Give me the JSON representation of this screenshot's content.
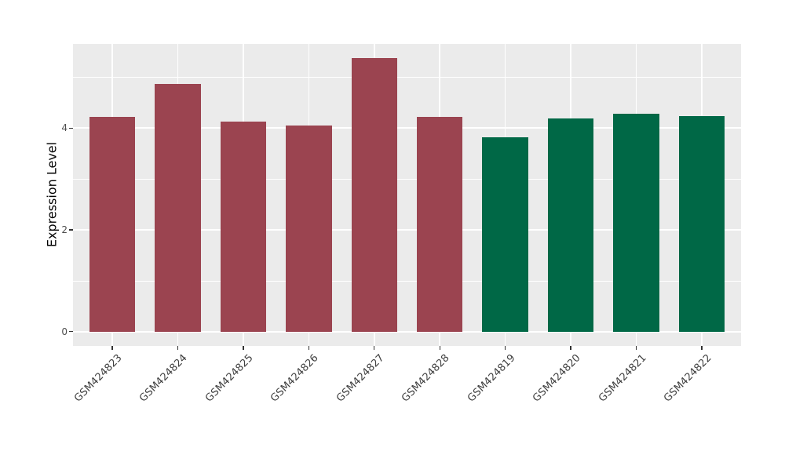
{
  "chart_data": {
    "type": "bar",
    "title": "",
    "xlabel": "",
    "ylabel": "Expression Level",
    "categories": [
      "GSM424823",
      "GSM424824",
      "GSM424825",
      "GSM424826",
      "GSM424827",
      "GSM424828",
      "GSM424819",
      "GSM424820",
      "GSM424821",
      "GSM424822"
    ],
    "values": [
      4.21,
      4.86,
      4.13,
      4.05,
      5.37,
      4.21,
      3.82,
      4.19,
      4.28,
      4.24
    ],
    "bar_colors": [
      "#9B4450",
      "#9B4450",
      "#9B4450",
      "#9B4450",
      "#9B4450",
      "#9B4450",
      "#006846",
      "#006846",
      "#006846",
      "#006846"
    ],
    "yticks": [
      0,
      2,
      4
    ],
    "yticks_minor": [
      1,
      3,
      5
    ],
    "ylim": [
      -0.28,
      5.65
    ],
    "x_tick_angle": -45,
    "grid": true,
    "legend": null,
    "styles": {
      "panel_bg": "#EBEBEB",
      "grid_color": "#FFFFFF",
      "accent_red": "#9B4450",
      "accent_green": "#006846",
      "tick_label_color": "#4D4D4D",
      "axis_title_color": "#000000",
      "tick_mark_color": "#333333"
    }
  }
}
